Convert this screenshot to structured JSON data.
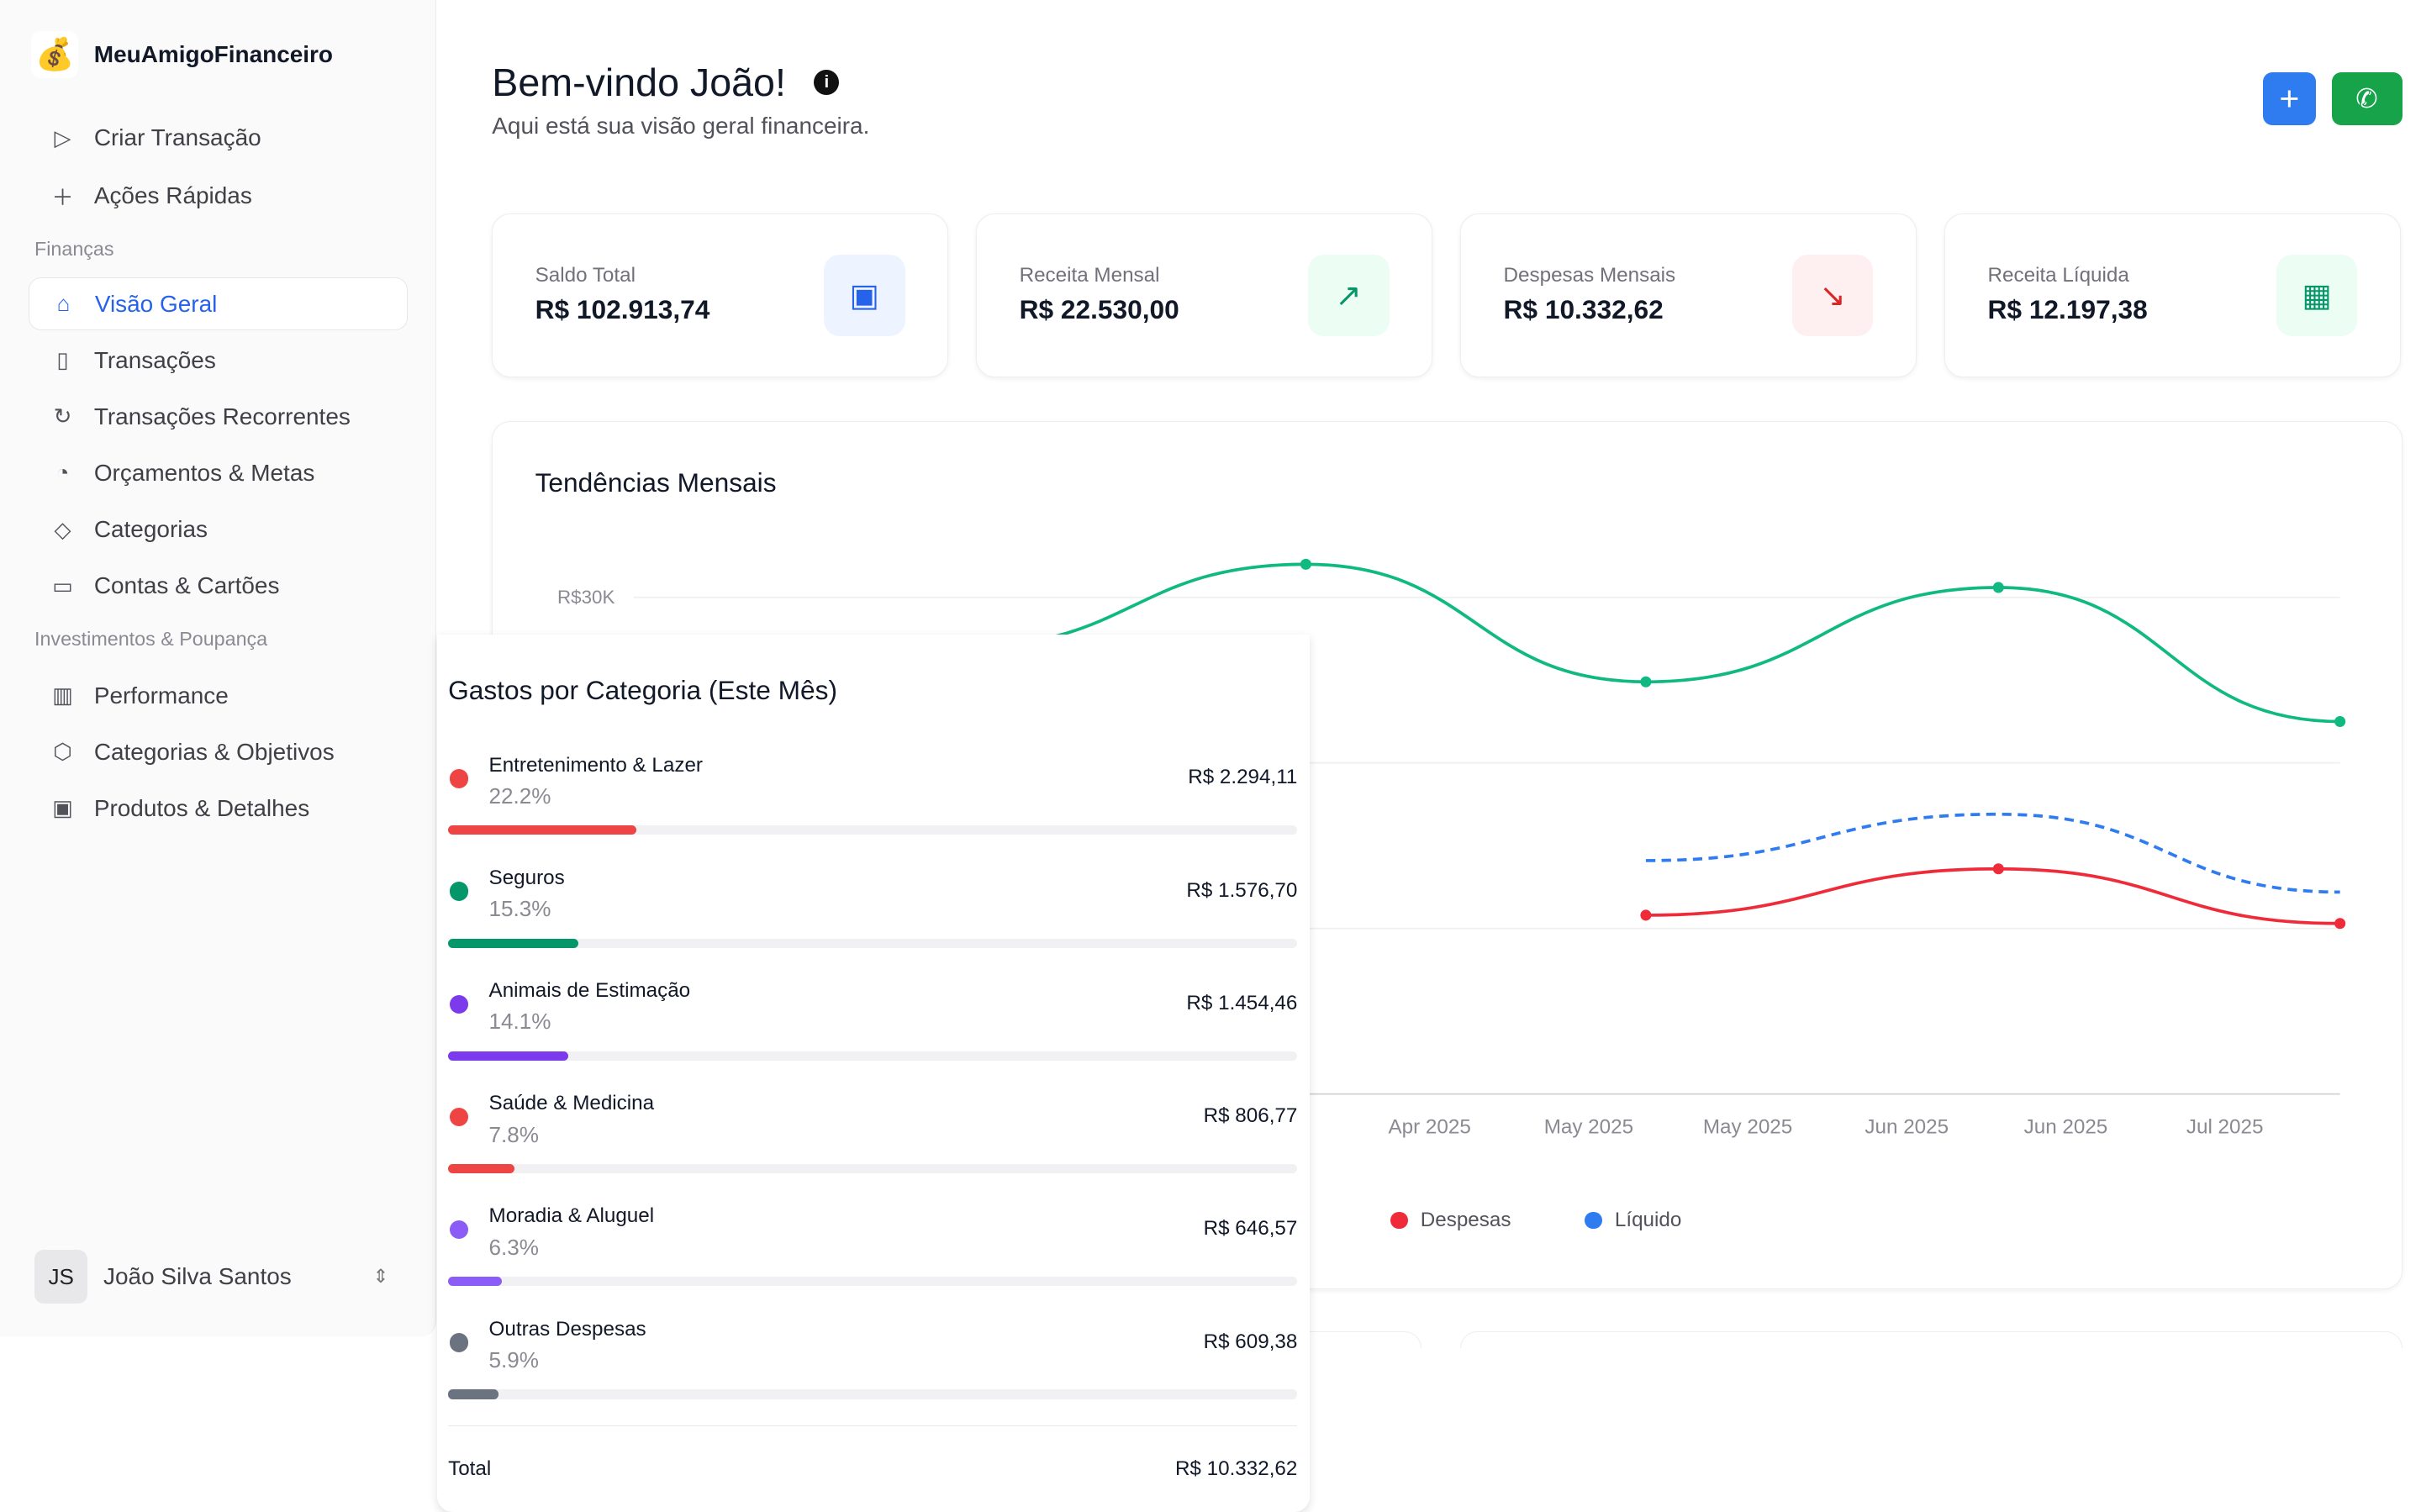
{
  "app": {
    "name": "MeuAmigoFinanceiro",
    "logo_icon": "money-bag-icon"
  },
  "sidebar": {
    "top": [
      {
        "label": "Criar Transação",
        "icon": "send-icon"
      },
      {
        "label": "Ações Rápidas",
        "icon": "plus-icon"
      }
    ],
    "section1": "Finanças",
    "finance": [
      {
        "label": "Visão Geral",
        "icon": "home-icon",
        "active": true
      },
      {
        "label": "Transações",
        "icon": "receipt-icon"
      },
      {
        "label": "Transações Recorrentes",
        "icon": "refresh-icon"
      },
      {
        "label": "Orçamentos & Metas",
        "icon": "pie-chart-icon"
      },
      {
        "label": "Categorias",
        "icon": "tag-icon"
      },
      {
        "label": "Contas & Cartões",
        "icon": "credit-card-icon"
      }
    ],
    "section2": "Investimentos & Poupança",
    "invest": [
      {
        "label": "Performance",
        "icon": "bar-chart-icon"
      },
      {
        "label": "Categorias & Objetivos",
        "icon": "box-icon"
      },
      {
        "label": "Produtos & Detalhes",
        "icon": "banknote-icon"
      }
    ],
    "user": {
      "initials": "JS",
      "name": "João Silva Santos"
    }
  },
  "header": {
    "title": "Bem-vindo João!",
    "subtitle": "Aqui está sua visão geral financeira."
  },
  "stats": [
    {
      "label": "Saldo Total",
      "value": "R$ 102.913,74",
      "icon": "banknote-icon",
      "color": "#2563eb",
      "bg": "#eef4ff"
    },
    {
      "label": "Receita Mensal",
      "value": "R$ 22.530,00",
      "icon": "trending-up-icon",
      "color": "#059669",
      "bg": "#ecfdf3"
    },
    {
      "label": "Despesas Mensais",
      "value": "R$ 10.332,62",
      "icon": "trending-down-icon",
      "color": "#dc2626",
      "bg": "#fef0f0"
    },
    {
      "label": "Receita Líquida",
      "value": "R$ 12.197,38",
      "icon": "calculator-icon",
      "color": "#059669",
      "bg": "#ecfdf3"
    }
  ],
  "chart_data": {
    "type": "line",
    "title": "Tendências Mensais",
    "y_tick_labels": [
      "R$30K"
    ],
    "ylim": [
      0,
      33000
    ],
    "grid": true,
    "x_tick_labels": [
      "Apr 2025",
      "May 2025",
      "May 2025",
      "Jun 2025",
      "Jun 2025",
      "Jul 2025"
    ],
    "series": [
      {
        "name": "Despesas",
        "color": "#ef2b3a",
        "dashed": false,
        "values": [
          null,
          null,
          10800,
          13600,
          10300
        ]
      },
      {
        "name": "Líquido",
        "color": "#2f7cf0",
        "dashed": true,
        "values": [
          null,
          null,
          14100,
          16900,
          12200
        ]
      },
      {
        "color": "#10b981",
        "dashed": false,
        "values": [
          27000,
          32000,
          24900,
          30600,
          22500
        ]
      }
    ],
    "legend": [
      "Despesas",
      "Líquido"
    ],
    "legend_placement": "bottom"
  },
  "categories": {
    "title": "Gastos por Categoria (Este Mês)",
    "items": [
      {
        "name": "Entretenimento & Lazer",
        "pct": "22.2%",
        "amount": "R$ 2.294,11",
        "share": 22.2,
        "color": "#ef4444"
      },
      {
        "name": "Seguros",
        "pct": "15.3%",
        "amount": "R$ 1.576,70",
        "share": 15.3,
        "color": "#059669"
      },
      {
        "name": "Animais de Estimação",
        "pct": "14.1%",
        "amount": "R$ 1.454,46",
        "share": 14.1,
        "color": "#7c3aed"
      },
      {
        "name": "Saúde & Medicina",
        "pct": "7.8%",
        "amount": "R$ 806,77",
        "share": 7.8,
        "color": "#ef4444"
      },
      {
        "name": "Moradia & Aluguel",
        "pct": "6.3%",
        "amount": "R$ 646,57",
        "share": 6.3,
        "color": "#8b5cf6"
      },
      {
        "name": "Outras Despesas",
        "pct": "5.9%",
        "amount": "R$ 609,38",
        "share": 5.9,
        "color": "#6b7280"
      }
    ],
    "total_label": "Total",
    "total_value": "R$ 10.332,62"
  },
  "actions": {
    "add_icon": "plus-icon",
    "whatsapp_icon": "whatsapp-icon"
  }
}
